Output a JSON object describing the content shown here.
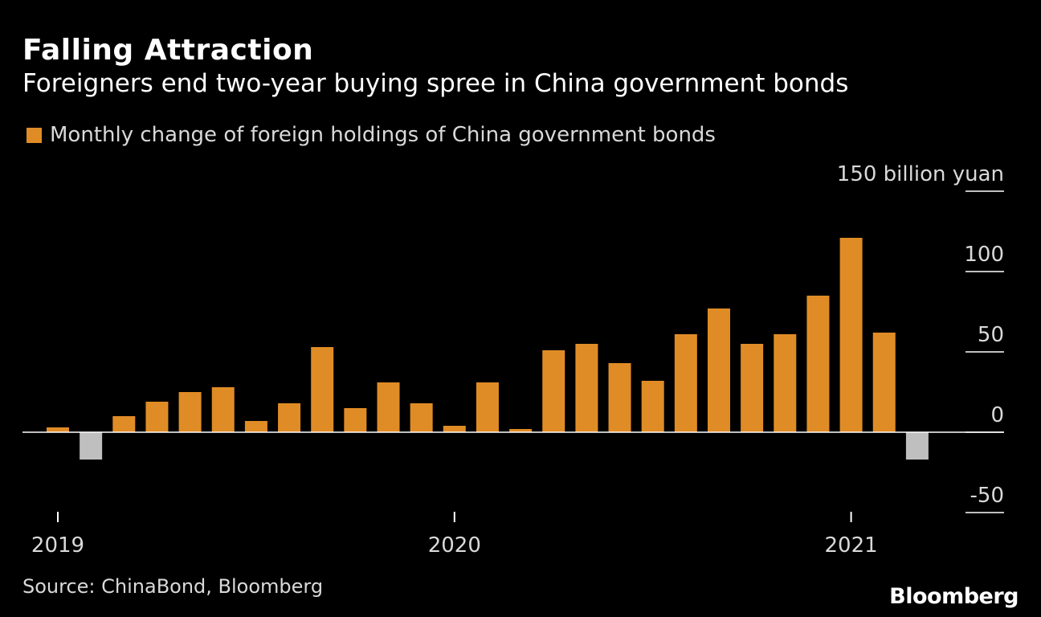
{
  "header": {
    "title": "Falling Attraction",
    "subtitle": "Foreigners end two-year buying spree in China government bonds"
  },
  "legend": {
    "label": "Monthly change of foreign holdings of China government bonds",
    "color": "#e08c26"
  },
  "footer": {
    "source": "Source: ChinaBond, Bloomberg",
    "logo": "Bloomberg"
  },
  "colors": {
    "positive": "#e08c26",
    "negative": "#bfbfbf",
    "background": "#000000",
    "axis": "#ffffff"
  },
  "chart_data": {
    "type": "bar",
    "x": [
      "2019-01",
      "2019-02",
      "2019-03",
      "2019-04",
      "2019-05",
      "2019-06",
      "2019-07",
      "2019-08",
      "2019-09",
      "2019-10",
      "2019-11",
      "2019-12",
      "2020-01",
      "2020-02",
      "2020-03",
      "2020-04",
      "2020-05",
      "2020-06",
      "2020-07",
      "2020-08",
      "2020-09",
      "2020-10",
      "2020-11",
      "2020-12",
      "2021-01",
      "2021-02",
      "2021-03"
    ],
    "values": [
      3,
      -17,
      10,
      19,
      25,
      28,
      7,
      18,
      53,
      15,
      31,
      18,
      4,
      31,
      2,
      51,
      55,
      43,
      32,
      61,
      77,
      55,
      61,
      85,
      121,
      62,
      -17
    ],
    "ylim": [
      -50,
      150
    ],
    "yticks": [
      -50,
      0,
      50,
      100,
      150
    ],
    "ytick_labels": [
      "-50",
      "0",
      "50",
      "100",
      "150 billion yuan"
    ],
    "xticks": [
      {
        "at": "2019-01",
        "label": "2019"
      },
      {
        "at": "2020-01",
        "label": "2020"
      },
      {
        "at": "2021-01",
        "label": "2021"
      }
    ],
    "y_axis_side": "right",
    "grid": false,
    "legend_position": "top-left"
  }
}
